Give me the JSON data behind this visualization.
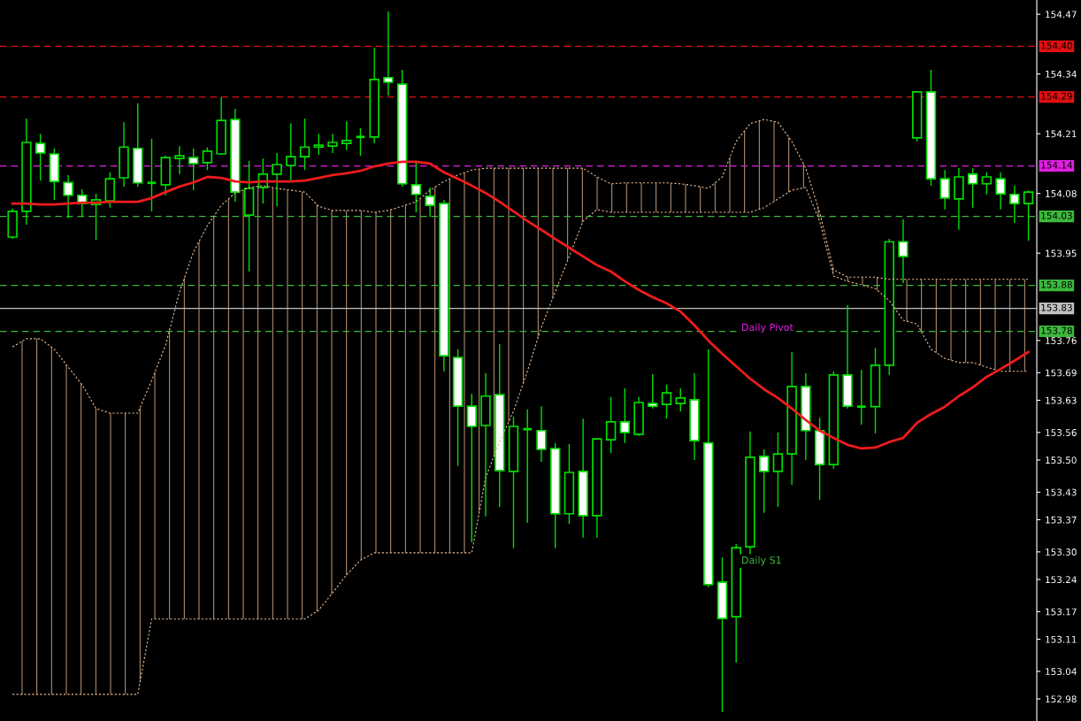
{
  "chart_data": {
    "type": "candlestick",
    "categories": [
      null,
      null,
      null,
      null,
      null,
      null,
      null,
      null,
      null,
      null,
      null,
      null,
      null,
      null,
      null,
      null,
      null,
      null,
      null,
      null,
      null,
      null,
      null,
      null,
      null,
      null,
      null,
      null,
      null,
      null,
      null,
      null,
      null,
      null,
      null,
      null,
      null,
      null,
      null,
      null,
      null,
      null,
      null,
      null,
      null,
      null,
      null,
      null,
      null,
      null,
      null,
      null,
      null,
      null,
      null,
      null,
      null,
      null,
      null,
      null,
      null,
      null,
      null,
      null,
      null,
      null,
      null,
      null,
      null,
      null,
      null,
      null,
      null,
      null
    ],
    "color": "#00e000",
    "ohlc": [
      [
        153.985,
        154.047,
        153.981,
        154.041
      ],
      [
        154.041,
        154.243,
        154.012,
        154.191
      ],
      [
        154.189,
        154.21,
        154.108,
        154.168
      ],
      [
        154.166,
        154.178,
        154.066,
        154.106
      ],
      [
        154.104,
        154.12,
        154.026,
        154.076
      ],
      [
        154.076,
        154.089,
        154.029,
        154.058
      ],
      [
        154.056,
        154.079,
        153.979,
        154.066
      ],
      [
        154.064,
        154.126,
        154.049,
        154.112
      ],
      [
        154.114,
        154.235,
        154.095,
        154.181
      ],
      [
        154.178,
        154.276,
        154.095,
        154.103
      ],
      [
        154.103,
        154.199,
        154.041,
        154.103
      ],
      [
        154.099,
        154.162,
        154.076,
        154.158
      ],
      [
        154.156,
        154.183,
        154.122,
        154.162
      ],
      [
        154.158,
        154.178,
        154.087,
        154.145
      ],
      [
        154.147,
        154.18,
        154.131,
        154.172
      ],
      [
        154.166,
        154.289,
        154.164,
        154.239
      ],
      [
        154.241,
        154.264,
        154.062,
        154.083
      ],
      [
        154.033,
        154.151,
        153.91,
        154.091
      ],
      [
        154.093,
        154.156,
        154.058,
        154.122
      ],
      [
        154.122,
        154.168,
        154.052,
        154.143
      ],
      [
        154.141,
        154.233,
        154.106,
        154.16
      ],
      [
        154.16,
        154.243,
        154.131,
        154.181
      ],
      [
        154.181,
        154.21,
        154.164,
        154.185
      ],
      [
        154.183,
        154.21,
        154.168,
        154.191
      ],
      [
        154.189,
        154.237,
        154.174,
        154.195
      ],
      [
        154.203,
        154.222,
        154.162,
        154.203
      ],
      [
        154.203,
        154.397,
        154.189,
        154.328
      ],
      [
        154.332,
        154.476,
        154.293,
        154.322
      ],
      [
        154.318,
        154.349,
        154.095,
        154.101
      ],
      [
        154.099,
        154.149,
        154.039,
        154.078
      ],
      [
        154.074,
        154.093,
        154.029,
        154.054
      ],
      [
        154.058,
        154.066,
        153.693,
        153.727
      ],
      [
        153.723,
        153.741,
        153.487,
        153.617
      ],
      [
        153.617,
        153.644,
        153.321,
        153.573
      ],
      [
        153.575,
        153.689,
        153.377,
        153.639
      ],
      [
        153.642,
        153.752,
        153.398,
        153.477
      ],
      [
        153.475,
        153.594,
        153.308,
        153.573
      ],
      [
        153.567,
        153.61,
        153.363,
        153.567
      ],
      [
        153.564,
        153.617,
        153.496,
        153.523
      ],
      [
        153.525,
        153.537,
        153.308,
        153.383
      ],
      [
        153.383,
        153.535,
        153.361,
        153.473
      ],
      [
        153.475,
        153.59,
        153.331,
        153.379
      ],
      [
        153.379,
        153.548,
        153.331,
        153.546
      ],
      [
        153.544,
        153.637,
        153.515,
        153.583
      ],
      [
        153.583,
        153.656,
        153.537,
        153.56
      ],
      [
        153.556,
        153.637,
        153.552,
        153.625
      ],
      [
        153.623,
        153.687,
        153.612,
        153.617
      ],
      [
        153.621,
        153.664,
        153.59,
        153.646
      ],
      [
        153.623,
        153.656,
        153.606,
        153.635
      ],
      [
        153.631,
        153.689,
        153.5,
        153.542
      ],
      [
        153.537,
        153.741,
        153.223,
        153.229
      ],
      [
        153.234,
        153.288,
        152.951,
        153.155
      ],
      [
        153.159,
        153.317,
        153.059,
        153.309
      ],
      [
        153.311,
        153.562,
        153.292,
        153.506
      ],
      [
        153.508,
        153.523,
        153.385,
        153.475
      ],
      [
        153.475,
        153.56,
        153.398,
        153.513
      ],
      [
        153.513,
        153.735,
        153.446,
        153.66
      ],
      [
        153.66,
        153.689,
        153.5,
        153.564
      ],
      [
        153.564,
        153.592,
        153.413,
        153.49
      ],
      [
        153.49,
        153.693,
        153.481,
        153.685
      ],
      [
        153.685,
        153.837,
        153.612,
        153.617
      ],
      [
        153.616,
        153.696,
        153.577,
        153.616
      ],
      [
        153.616,
        153.744,
        153.558,
        153.706
      ],
      [
        153.706,
        153.981,
        153.685,
        153.975
      ],
      [
        153.975,
        154.024,
        153.885,
        153.943
      ],
      [
        154.201,
        154.301,
        154.193,
        154.301
      ],
      [
        154.301,
        154.349,
        154.097,
        154.112
      ],
      [
        154.112,
        154.131,
        154.045,
        154.07
      ],
      [
        154.068,
        154.135,
        154.001,
        154.116
      ],
      [
        154.122,
        154.135,
        154.049,
        154.101
      ],
      [
        154.101,
        154.126,
        154.078,
        154.116
      ],
      [
        154.112,
        154.126,
        154.045,
        154.079
      ],
      [
        154.078,
        154.097,
        154.016,
        154.058
      ],
      [
        154.058,
        154.087,
        153.977,
        154.083
      ]
    ],
    "series": [
      {
        "type": "area",
        "color": "#e8b890",
        "line_style": "dotted",
        "values": [
          153.746,
          153.764,
          153.764,
          153.741,
          153.702,
          153.664,
          153.612,
          153.602,
          153.602,
          153.602,
          153.673,
          153.75,
          153.866,
          153.952,
          154.01,
          154.054,
          154.081,
          154.093,
          154.097,
          154.091,
          154.087,
          154.083,
          154.052,
          154.043,
          154.043,
          154.043,
          154.039,
          154.043,
          154.052,
          154.062,
          154.087,
          154.106,
          154.12,
          154.131,
          154.135,
          154.135,
          154.135,
          154.135,
          154.135,
          154.135,
          154.135,
          154.135,
          154.116,
          154.101,
          154.103,
          154.103,
          154.103,
          154.103,
          154.101,
          154.097,
          154.091,
          154.116,
          154.193,
          154.232,
          154.241,
          154.235,
          154.193,
          154.135,
          154.039,
          153.914,
          153.898,
          153.898,
          153.898,
          153.893,
          153.893,
          153.893,
          153.893,
          153.893,
          153.893,
          153.893,
          153.893,
          153.893,
          153.893,
          153.893
        ]
      },
      {
        "type": "line",
        "color": "#e8b890",
        "line_style": "dotted",
        "values": [
          152.99,
          152.99,
          152.99,
          152.99,
          152.99,
          152.99,
          152.99,
          152.99,
          152.99,
          152.99,
          153.154,
          153.154,
          153.154,
          153.154,
          153.154,
          153.154,
          153.154,
          153.154,
          153.154,
          153.154,
          153.154,
          153.154,
          153.173,
          153.211,
          153.25,
          153.282,
          153.298,
          153.298,
          153.298,
          153.298,
          153.298,
          153.298,
          153.298,
          153.298,
          153.462,
          153.539,
          153.606,
          153.693,
          153.789,
          153.866,
          153.943,
          154.02,
          154.045,
          154.039,
          154.039,
          154.039,
          154.039,
          154.039,
          154.039,
          154.039,
          154.039,
          154.039,
          154.039,
          154.039,
          154.049,
          154.068,
          154.087,
          154.093,
          154.02,
          153.9,
          153.889,
          153.881,
          153.873,
          153.847,
          153.804,
          153.796,
          153.741,
          153.721,
          153.712,
          153.712,
          153.702,
          153.693,
          153.693,
          153.693
        ]
      },
      {
        "type": "line",
        "color": "#ee1c1c",
        "line_style": "solid",
        "values": [
          154.058,
          154.058,
          154.056,
          154.056,
          154.058,
          154.06,
          154.06,
          154.062,
          154.062,
          154.062,
          154.07,
          154.083,
          154.095,
          154.104,
          154.116,
          154.114,
          154.106,
          154.104,
          154.106,
          154.106,
          154.106,
          154.108,
          154.114,
          154.12,
          154.124,
          154.129,
          154.139,
          154.145,
          154.149,
          154.149,
          154.145,
          154.126,
          154.112,
          154.097,
          154.081,
          154.062,
          154.041,
          154.02,
          154.001,
          153.981,
          153.962,
          153.943,
          153.924,
          153.91,
          153.889,
          153.87,
          153.854,
          153.841,
          153.823,
          153.793,
          153.76,
          153.731,
          153.704,
          153.677,
          153.654,
          153.635,
          153.612,
          153.587,
          153.564,
          153.548,
          153.533,
          153.525,
          153.527,
          153.539,
          153.548,
          153.581,
          153.6,
          153.616,
          153.639,
          153.658,
          153.681,
          153.698,
          153.716,
          153.735
        ]
      }
    ],
    "ylim": [
      152.932,
      154.501
    ],
    "yticks": [
      152.98,
      153.04,
      153.11,
      153.17,
      153.24,
      {
        "value": 153.3,
        "label": "153.30"
      },
      153.37,
      153.43,
      {
        "value": 153.5,
        "label": "153.50"
      },
      153.56,
      153.63,
      153.69,
      153.76,
      153.95,
      154.08,
      154.21,
      154.34,
      154.47
    ],
    "tick_labels": "y",
    "ref_lines": [
      {
        "axis": "y",
        "value": 154.4,
        "label": "154.40",
        "color": "#e01010",
        "line_style": "dashed"
      },
      {
        "axis": "y",
        "value": 154.29,
        "label": "154.29",
        "color": "#e01010",
        "line_style": "dashed"
      },
      {
        "axis": "y",
        "value": 154.14,
        "label": "154.14",
        "color": "#e020e0",
        "line_style": "dashed"
      },
      {
        "axis": "y",
        "value": 154.03,
        "label": "154.03",
        "color": "#3cb83c",
        "line_style": "dashed"
      },
      {
        "axis": "y",
        "value": 153.88,
        "label": "153.88",
        "color": "#3cb83c",
        "line_style": "dashed"
      },
      {
        "axis": "y",
        "value": 153.83,
        "label": "153.83",
        "color": "#c0c0c0",
        "line_style": "solid"
      },
      {
        "axis": "y",
        "value": 153.78,
        "label": "153.78",
        "color": "#3cb83c",
        "line_style": "dashed"
      }
    ],
    "annotations": [
      "Daily Pivot",
      "Daily S1"
    ],
    "grid": false,
    "legend": false
  }
}
